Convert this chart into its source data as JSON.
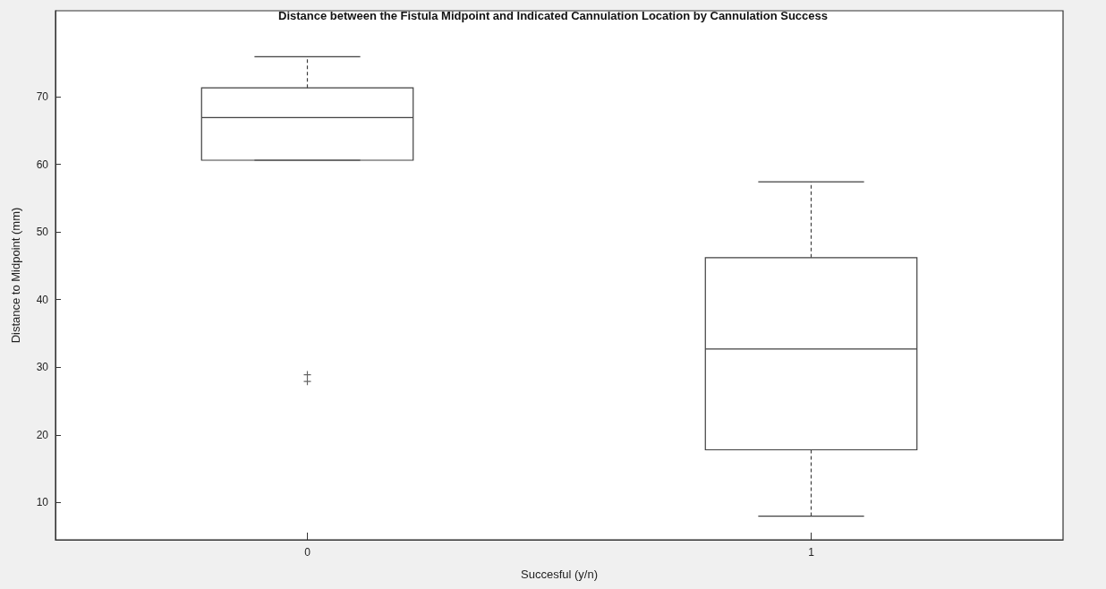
{
  "chart_data": {
    "type": "box",
    "title": "Distance between the Fistula Midpoint and Indicated Cannulation Location by Cannulation Success",
    "xlabel": "Succesful (y/n)",
    "ylabel": "Distance to Midpoint (mm)",
    "categories": [
      "0",
      "1"
    ],
    "boxes": [
      {
        "low": 60.6,
        "q1": 60.6,
        "median": 66.9,
        "q3": 71.3,
        "high": 75.9,
        "outliers": [
          28.9,
          27.9
        ]
      },
      {
        "low": 8.0,
        "q1": 17.8,
        "median": 32.7,
        "q3": 46.2,
        "high": 57.4
      }
    ],
    "color": "#404040",
    "marker": "cross",
    "line_style": "dashed",
    "ylim": [
      4.5,
      82.7
    ],
    "yticks": [
      10,
      20,
      30,
      40,
      50,
      60,
      70
    ],
    "grid": false
  }
}
